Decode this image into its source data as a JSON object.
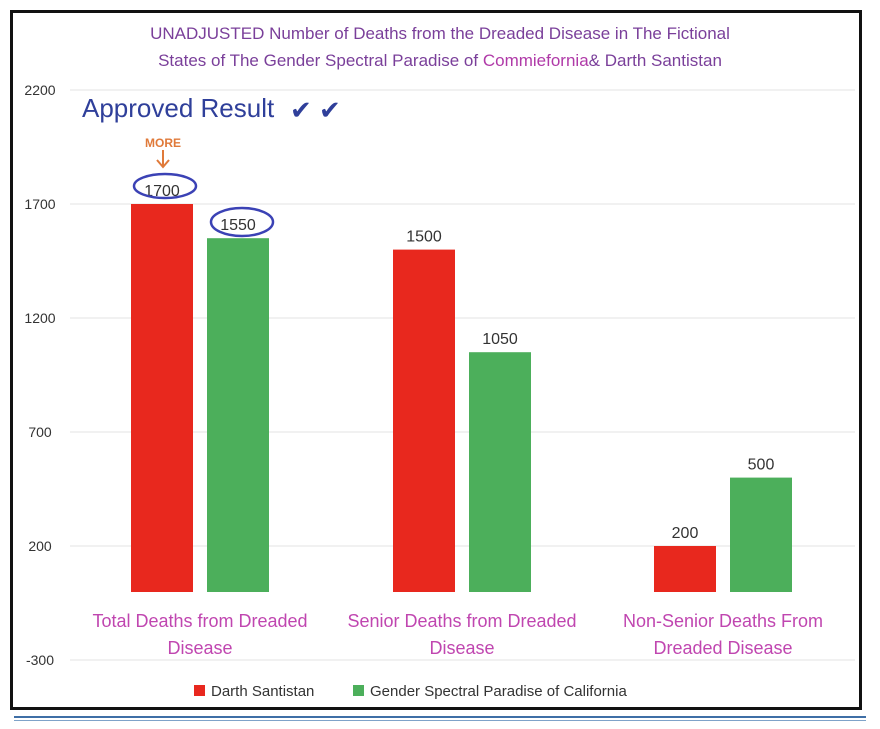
{
  "chart_data": {
    "type": "bar",
    "title_line1": "UNADJUSTED Number of Deaths from the Dreaded Disease in The Fictional",
    "title_line2_a": "States of The Gender Spectral Paradise of ",
    "title_line2_b": "Commiefornia",
    "title_line2_c": "& Darth Santistan",
    "categories": [
      [
        "Total Deaths from Dreaded",
        "Disease"
      ],
      [
        "Senior Deaths from Dreaded",
        "Disease"
      ],
      [
        "Non-Senior Deaths From",
        "Dreaded Disease"
      ]
    ],
    "series": [
      {
        "name": "Darth Santistan",
        "color": "#e8281e",
        "values": [
          1700,
          1500,
          200
        ]
      },
      {
        "name": "Gender Spectral Paradise of California",
        "color": "#4caf5b",
        "values": [
          1550,
          1050,
          500
        ]
      }
    ],
    "yticks": [
      2200,
      1700,
      1200,
      700,
      200,
      -300
    ],
    "ylim": [
      -300,
      2200
    ],
    "grid": true,
    "legend_position": "bottom"
  },
  "annotations": {
    "approved_text": "Approved Result",
    "approved_checks": "✔ ✔",
    "more_text": "MORE",
    "colors": {
      "title": "#7a3f9a",
      "approved": "#2f3f9a",
      "circle": "#3b42b5",
      "more": "#e07a3a"
    }
  }
}
